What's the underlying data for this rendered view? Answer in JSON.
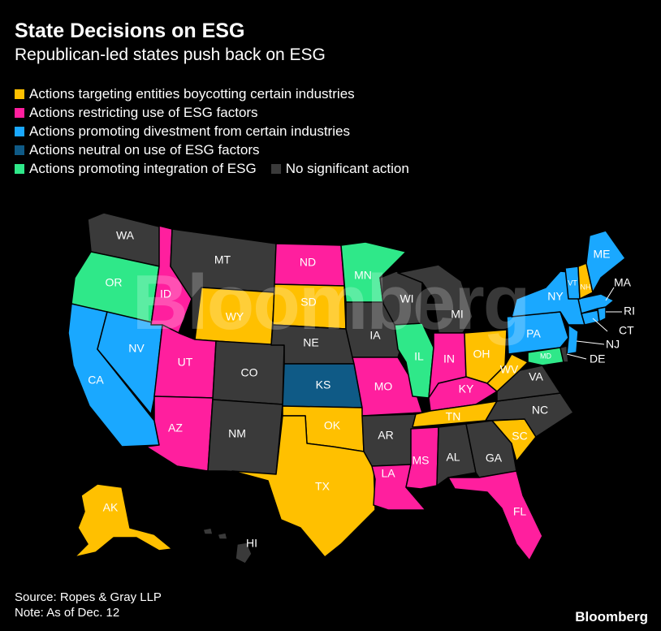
{
  "title": "State Decisions on ESG",
  "subtitle": "Republican-led states push back on ESG",
  "colors": {
    "boycott": "#ffc000",
    "restrict": "#ff1f9e",
    "divest": "#1aa8ff",
    "neutral": "#0f5a86",
    "integrate": "#2fe889",
    "none": "#3a3a3a"
  },
  "legend": [
    {
      "key": "boycott",
      "label": "Actions targeting entities boycotting certain industries"
    },
    {
      "key": "restrict",
      "label": "Actions restricting use of ESG factors"
    },
    {
      "key": "divest",
      "label": "Actions promoting divestment from certain industries"
    },
    {
      "key": "neutral",
      "label": "Actions neutral on use of ESG factors"
    },
    {
      "key": "integrate",
      "label": "Actions promoting integration of ESG"
    },
    {
      "key": "none",
      "label": "No significant action"
    }
  ],
  "states": {
    "WA": "none",
    "OR": "integrate",
    "CA": "divest",
    "NV": "divest",
    "ID": "restrict",
    "MT": "none",
    "WY": "boycott",
    "UT": "restrict",
    "AZ": "restrict",
    "CO": "none",
    "NM": "none",
    "ND": "restrict",
    "SD": "boycott",
    "NE": "none",
    "KS": "neutral",
    "OK": "boycott",
    "TX": "boycott",
    "MN": "integrate",
    "IA": "none",
    "MO": "restrict",
    "AR": "none",
    "LA": "restrict",
    "WI": "none",
    "IL": "integrate",
    "MI": "none",
    "IN": "restrict",
    "OH": "boycott",
    "KY": "restrict",
    "TN": "boycott",
    "MS": "restrict",
    "AL": "none",
    "GA": "none",
    "FL": "restrict",
    "SC": "boycott",
    "NC": "none",
    "VA": "none",
    "WV": "boycott",
    "MD": "integrate",
    "DE": "none",
    "NJ": "divest",
    "PA": "divest",
    "NY": "divest",
    "CT": "divest",
    "RI": "divest",
    "MA": "divest",
    "VT": "divest",
    "NH": "boycott",
    "ME": "divest",
    "AK": "boycott",
    "HI": "none"
  },
  "watermark": "Bloomberg",
  "source": "Source: Ropes & Gray LLP",
  "note": "Note: As of Dec. 12",
  "brand": "Bloomberg"
}
